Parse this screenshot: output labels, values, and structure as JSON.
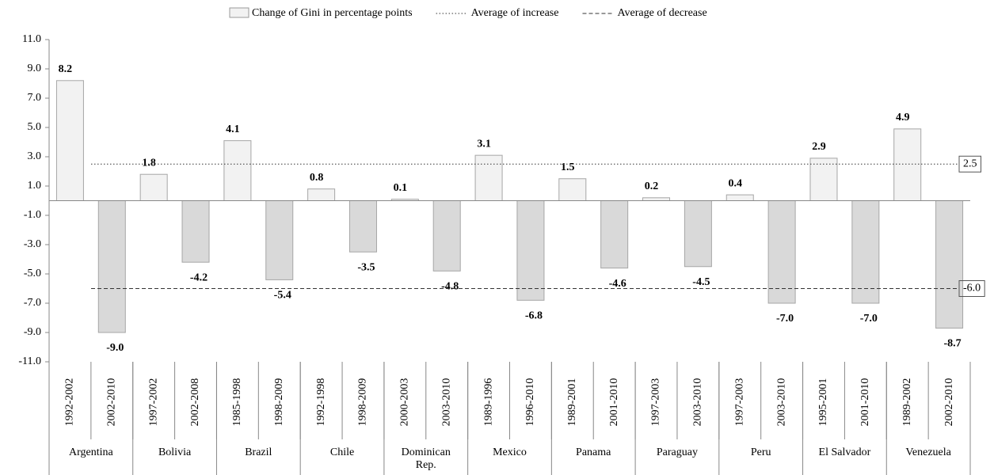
{
  "chart_data": {
    "type": "bar",
    "groups": [
      "Argentina",
      "Bolivia",
      "Brazil",
      "Chile",
      "Dominican Rep.",
      "Mexico",
      "Panama",
      "Paraguay",
      "Peru",
      "El Salvador",
      "Venezuela"
    ],
    "categories": [
      "1992-2002",
      "2002-2010",
      "1997-2002",
      "2002-2008",
      "1985-1998",
      "1998-2009",
      "1992-1998",
      "1998-2009",
      "2000-2003",
      "2003-2010",
      "1989-1996",
      "1996-2010",
      "1989-2001",
      "2001-2010",
      "1997-2003",
      "2003-2010",
      "1997-2003",
      "2003-2010",
      "1995-2001",
      "2001-2010",
      "1989-2002",
      "2002-2010"
    ],
    "series": [
      {
        "name": "Change of Gini in percentage points",
        "values": [
          8.2,
          -9.0,
          1.8,
          -4.2,
          4.1,
          -5.4,
          0.8,
          -3.5,
          0.1,
          -4.8,
          3.1,
          -6.8,
          1.5,
          -4.6,
          0.2,
          -4.5,
          0.4,
          -7.0,
          2.9,
          -7.0,
          4.9,
          -8.7
        ],
        "value_labels": [
          "8.2",
          "-9.0",
          "1.8",
          "-4.2",
          "4.1",
          "-5.4",
          "0.8",
          "-3.5",
          "0.1",
          "-4.8",
          "3.1",
          "-6.8",
          "1.5",
          "-4.6",
          "0.2",
          "-4.5",
          "0.4",
          "-7.0",
          "2.9",
          "-7.0",
          "4.9",
          "-8.7"
        ],
        "color_increase": "#f2f2f2",
        "color_decrease": "#d9d9d9"
      }
    ],
    "reference_lines": [
      {
        "name": "Average of increase",
        "value": 2.5,
        "label": "2.5",
        "style": "dotted"
      },
      {
        "name": "Average of decrease",
        "value": -6.0,
        "label": "-6.0",
        "style": "dashed"
      }
    ],
    "ylim": [
      -11,
      11
    ],
    "yticks": [
      {
        "value": -11,
        "label": "-11.0"
      },
      {
        "value": -9,
        "label": "-9.0"
      },
      {
        "value": -7,
        "label": "-7.0"
      },
      {
        "value": -5,
        "label": "-5.0"
      },
      {
        "value": -3,
        "label": "-3.0"
      },
      {
        "value": -1,
        "label": "-1.0"
      },
      {
        "value": 1,
        "label": "1.0"
      },
      {
        "value": 3,
        "label": "3.0"
      },
      {
        "value": 5,
        "label": "5.0"
      },
      {
        "value": 7,
        "label": "7.0"
      },
      {
        "value": 9,
        "label": "9.0"
      },
      {
        "value": 11,
        "label": "11.0"
      }
    ],
    "grid": false
  }
}
